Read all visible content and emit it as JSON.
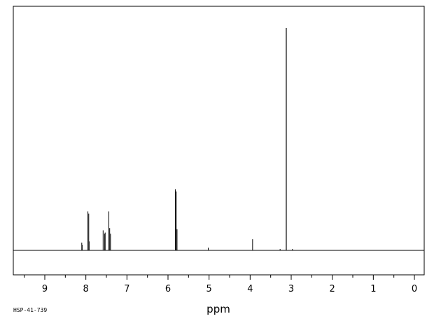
{
  "chart_data": {
    "type": "line",
    "xlabel": "ppm",
    "ylabel": "",
    "xlim": [
      9.73,
      -0.22
    ],
    "ylim": [
      -0.12,
      1.04
    ],
    "x_reversed": true,
    "grid": false,
    "ticks": {
      "major": [
        9,
        8,
        7,
        6,
        5,
        4,
        3,
        2,
        1,
        0
      ],
      "labels": [
        "9",
        "8",
        "7",
        "6",
        "5",
        "4",
        "3",
        "2",
        "1",
        "0"
      ]
    },
    "peaks": [
      {
        "x": 8.1,
        "y": 0.035
      },
      {
        "x": 8.09,
        "y": 0.025
      },
      {
        "x": 7.95,
        "y": 0.175
      },
      {
        "x": 7.93,
        "y": 0.165
      },
      {
        "x": 7.92,
        "y": 0.04
      },
      {
        "x": 7.58,
        "y": 0.09
      },
      {
        "x": 7.545,
        "y": 0.075
      },
      {
        "x": 7.53,
        "y": 0.08
      },
      {
        "x": 7.44,
        "y": 0.175
      },
      {
        "x": 7.42,
        "y": 0.1
      },
      {
        "x": 7.4,
        "y": 0.075
      },
      {
        "x": 5.82,
        "y": 0.275
      },
      {
        "x": 5.8,
        "y": 0.265
      },
      {
        "x": 5.78,
        "y": 0.095
      },
      {
        "x": 5.02,
        "y": 0.012
      },
      {
        "x": 3.94,
        "y": 0.05
      },
      {
        "x": 3.12,
        "y": 1.0
      },
      {
        "x": 3.27,
        "y": 0.006
      },
      {
        "x": 2.97,
        "y": 0.006
      }
    ]
  },
  "footer": {
    "sample_id": "HSP-41-739"
  }
}
